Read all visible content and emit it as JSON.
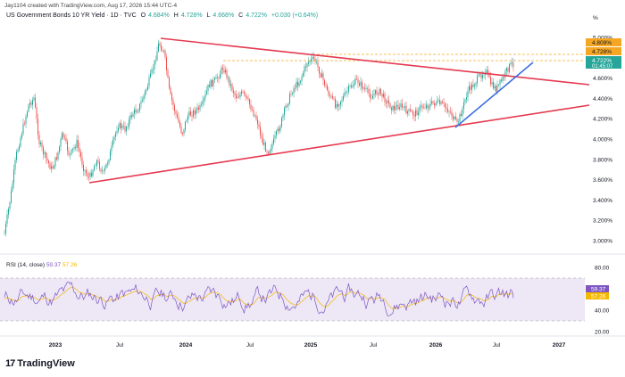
{
  "caption": "Jay1104 created with TradingView.com, Aug 17, 2026 15:44 UTC-4",
  "symbol": {
    "title": "US Government Bonds 10 YR Yield · 1D · TVC",
    "open_label": "O",
    "open": "4.684%",
    "high_label": "H",
    "high": "4.728%",
    "low_label": "L",
    "low": "4.668%",
    "close_label": "C",
    "close": "4.722%",
    "change": "+0.030 (+0.64%)"
  },
  "price_axis": {
    "unit": "%",
    "ticks": [
      "5.000%",
      "4.800%",
      "4.600%",
      "4.400%",
      "4.200%",
      "4.000%",
      "3.800%",
      "3.600%",
      "3.400%",
      "3.200%",
      "3.000%",
      "2.800%",
      "2.600%"
    ],
    "tick_values": [
      5.0,
      4.8,
      4.6,
      4.4,
      4.2,
      4.0,
      3.8,
      3.6,
      3.4,
      3.2,
      3.0,
      2.8,
      2.6
    ],
    "badges": [
      {
        "label": "4.809%",
        "value": 4.809,
        "color": "#f5a623"
      },
      {
        "label": "4.728%",
        "value": 4.728,
        "color": "#f5a623"
      },
      {
        "label": "4.722%",
        "value": 4.722,
        "color": "#26a69a",
        "sub": "01:45:07"
      }
    ]
  },
  "time_axis": {
    "labels": [
      "2023",
      "Jul",
      "2024",
      "Jul",
      "2025",
      "Jul",
      "2026",
      "Jul",
      "2027"
    ],
    "bold": [
      "2023",
      "2024",
      "2025",
      "2026",
      "2027"
    ]
  },
  "rsi": {
    "title": "RSI (14, close)",
    "rsi_value": "59.37",
    "ma_value": "57.26",
    "ticks": [
      "80.00",
      "40.00",
      "20.00"
    ],
    "tick_values": [
      80,
      40,
      20
    ],
    "band_upper": 70,
    "band_lower": 30,
    "rsi_color": "#7e57c2",
    "ma_color": "#f5b800",
    "band_color": "#ede7f6"
  },
  "colors": {
    "up": "#26a69a",
    "down": "#ef5350",
    "trendline_red": "#e53950",
    "trendline_blue": "#3d6fe0",
    "level_dashed": "#f5a623"
  },
  "logo": {
    "text": "TradingView"
  }
}
